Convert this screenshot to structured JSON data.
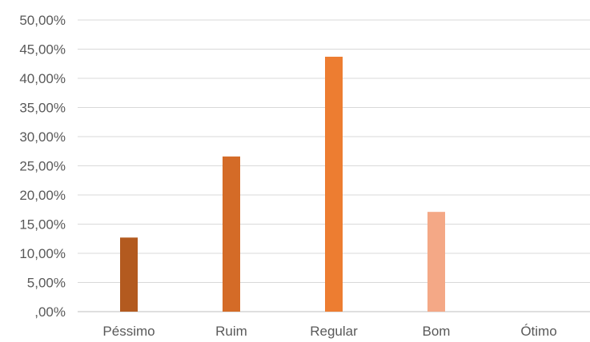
{
  "chart_data": {
    "type": "bar",
    "categories": [
      "Péssimo",
      "Ruim",
      "Regular",
      "Bom",
      "Ótimo"
    ],
    "values": [
      12.7,
      26.6,
      43.7,
      17.1,
      0
    ],
    "colors": [
      "#b35a1f",
      "#d46b27",
      "#ed7d31",
      "#f4a886",
      "#f8cbad"
    ],
    "ylim": [
      0,
      50
    ],
    "yticks": [
      0,
      5,
      10,
      15,
      20,
      25,
      30,
      35,
      40,
      45,
      50
    ],
    "ytick_labels": [
      ",00%",
      "5,00%",
      "10,00%",
      "15,00%",
      "20,00%",
      "25,00%",
      "30,00%",
      "35,00%",
      "40,00%",
      "45,00%",
      "50,00%"
    ],
    "grid": true,
    "legend": "none"
  }
}
